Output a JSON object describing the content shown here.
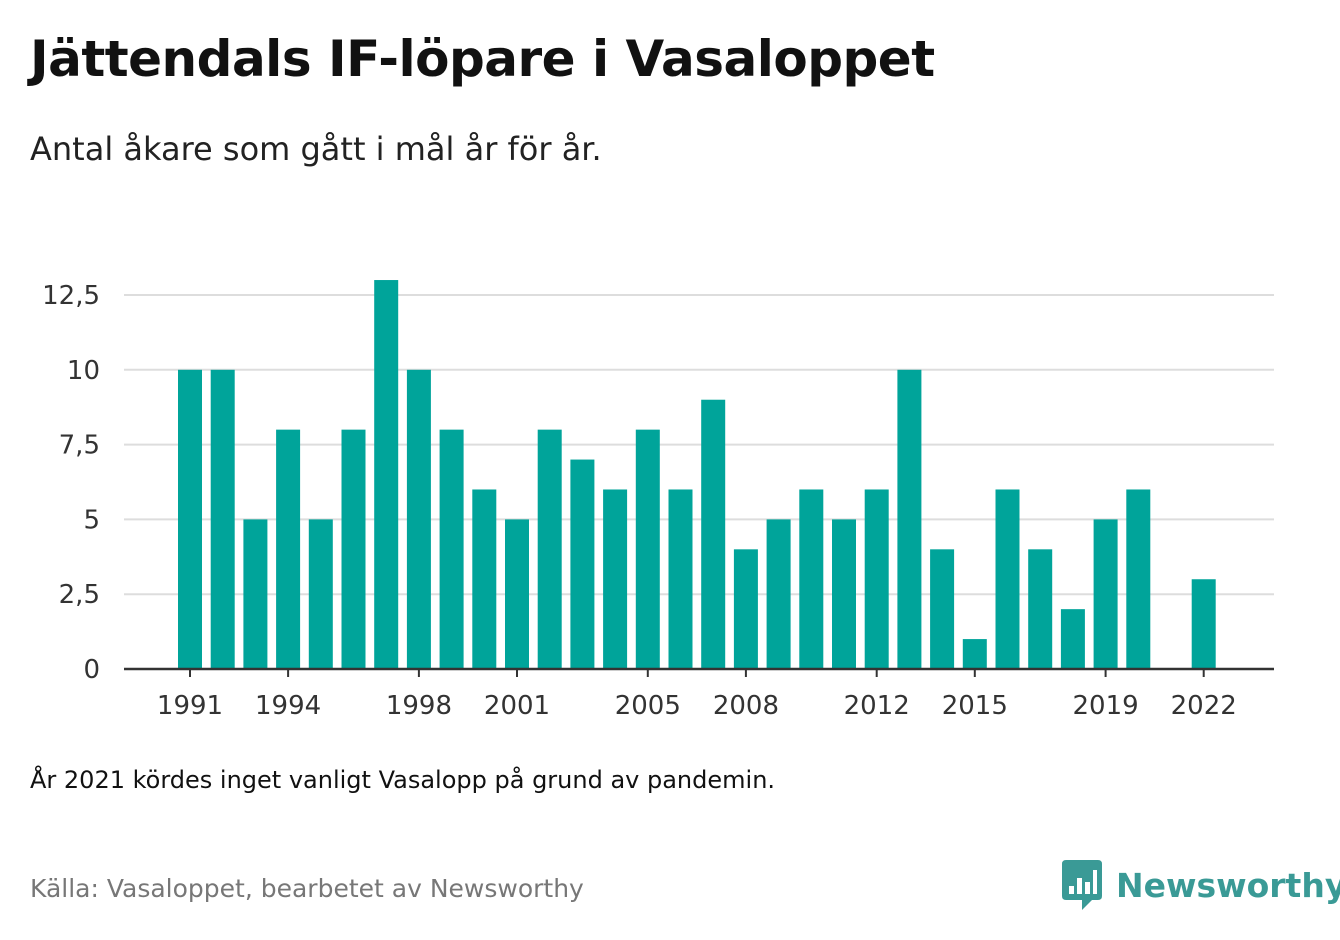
{
  "title": "Jättendals IF-löpare i Vasaloppet",
  "subtitle": "Antal åkare som gått i mål år för år.",
  "note": "År 2021 kördes inget vanligt Vasalopp på grund av pandemin.",
  "source": "Källa: Vasaloppet, bearbetet av Newsworthy",
  "brand": {
    "name": "Newsworthy",
    "icon": "newsworthy-logo-icon"
  },
  "colors": {
    "bar": "#00a49a",
    "grid": "#dddddd",
    "axis": "#333333",
    "brand": "#3a9a96"
  },
  "chart_data": {
    "type": "bar",
    "categories": [
      1991,
      1992,
      1993,
      1994,
      1995,
      1996,
      1997,
      1998,
      1999,
      2000,
      2001,
      2002,
      2003,
      2004,
      2005,
      2006,
      2007,
      2008,
      2009,
      2010,
      2011,
      2012,
      2013,
      2014,
      2015,
      2016,
      2017,
      2018,
      2019,
      2020,
      2021,
      2022
    ],
    "values": [
      10,
      10,
      5,
      8,
      5,
      8,
      13,
      10,
      8,
      6,
      5,
      8,
      7,
      6,
      8,
      6,
      9,
      4,
      5,
      6,
      5,
      6,
      10,
      4,
      1,
      6,
      4,
      2,
      5,
      6,
      null,
      3
    ],
    "x_tick_labels": [
      "1991",
      "1994",
      "1998",
      "2001",
      "2005",
      "2008",
      "2012",
      "2015",
      "2019",
      "2022"
    ],
    "y_ticks": [
      0,
      2.5,
      5,
      7.5,
      10,
      12.5
    ],
    "y_tick_labels": [
      "0",
      "2,5",
      "5",
      "7,5",
      "10",
      "12,5"
    ],
    "ylim": [
      0,
      12.5
    ],
    "grid": true,
    "legend": "none"
  }
}
